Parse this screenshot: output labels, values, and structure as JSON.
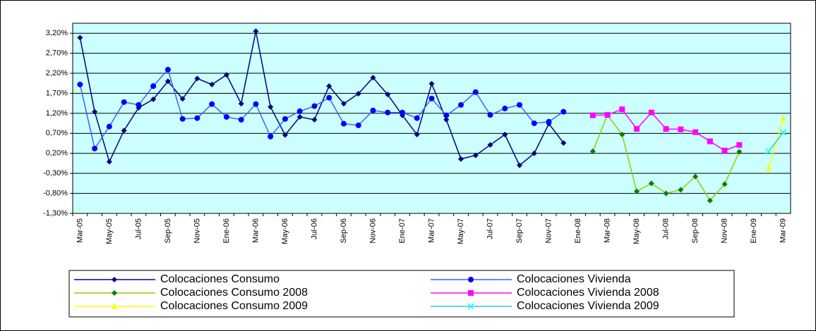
{
  "chart_data": {
    "type": "line",
    "categories": [
      "Mar-05",
      null,
      "May-05",
      null,
      "Jul-05",
      null,
      "Sep-05",
      null,
      "Nov-05",
      null,
      "Ene-06",
      null,
      "Mar-06",
      null,
      "May-06",
      null,
      "Jul-06",
      null,
      "Sep-06",
      null,
      "Nov-06",
      null,
      "Ene-07",
      null,
      "Mar-07",
      null,
      "May-07",
      null,
      "Jul-07",
      null,
      "Sep-07",
      null,
      "Nov-07",
      null,
      "Ene-08",
      null,
      "Mar-08",
      null,
      "May-08",
      null,
      "Jul-08",
      null,
      "Sep-08",
      null,
      "Nov-08",
      null,
      "Ene-09",
      null,
      "Mar-09"
    ],
    "series": [
      {
        "name": "Colocaciones Consumo",
        "color": "#000080",
        "marker_color": "#000080",
        "marker": "diamond",
        "values": [
          3.09,
          1.24,
          -0.01,
          0.77,
          1.34,
          1.55,
          2.0,
          1.56,
          2.07,
          1.92,
          2.16,
          1.44,
          3.25,
          1.36,
          0.66,
          1.11,
          1.04,
          1.88,
          1.44,
          1.69,
          2.09,
          1.67,
          1.15,
          0.67,
          1.94,
          1.04,
          0.06,
          0.15,
          0.41,
          0.67,
          -0.1,
          0.2,
          0.94,
          0.46,
          null,
          null,
          null,
          null,
          null,
          null,
          null,
          null,
          null,
          null,
          null,
          null,
          null,
          null,
          null
        ]
      },
      {
        "name": "Colocaciones Vivienda",
        "color": "#3366ff",
        "marker_color": "#0000ff",
        "marker": "circle",
        "values": [
          1.92,
          0.32,
          0.87,
          1.48,
          1.41,
          1.88,
          2.29,
          1.06,
          1.08,
          1.43,
          1.11,
          1.04,
          1.43,
          0.62,
          1.06,
          1.25,
          1.38,
          1.59,
          0.94,
          0.9,
          1.27,
          1.22,
          1.22,
          1.08,
          1.57,
          1.15,
          1.41,
          1.73,
          1.16,
          1.32,
          1.41,
          0.95,
          0.99,
          1.24,
          null,
          null,
          null,
          null,
          null,
          null,
          null,
          null,
          null,
          null,
          null,
          null,
          null,
          null,
          null
        ]
      },
      {
        "name": "Colocaciones Consumo 2008",
        "color": "#99cc00",
        "marker_color": "#008000",
        "marker": "diamond",
        "values": [
          null,
          null,
          null,
          null,
          null,
          null,
          null,
          null,
          null,
          null,
          null,
          null,
          null,
          null,
          null,
          null,
          null,
          null,
          null,
          null,
          null,
          null,
          null,
          null,
          null,
          null,
          null,
          null,
          null,
          null,
          null,
          null,
          null,
          null,
          null,
          0.25,
          1.16,
          0.67,
          -0.75,
          -0.55,
          -0.8,
          -0.71,
          -0.38,
          -0.98,
          -0.57,
          0.24,
          null,
          null,
          null
        ]
      },
      {
        "name": "Colocaciones Vivienda 2008",
        "color": "#ff00ff",
        "marker_color": "#ff00ff",
        "marker": "square",
        "values": [
          null,
          null,
          null,
          null,
          null,
          null,
          null,
          null,
          null,
          null,
          null,
          null,
          null,
          null,
          null,
          null,
          null,
          null,
          null,
          null,
          null,
          null,
          null,
          null,
          null,
          null,
          null,
          null,
          null,
          null,
          null,
          null,
          null,
          null,
          null,
          1.15,
          1.16,
          1.3,
          0.81,
          1.22,
          0.81,
          0.8,
          0.73,
          0.5,
          0.27,
          0.41,
          null,
          null,
          null
        ]
      },
      {
        "name": "Colocaciones Consumo 2009",
        "color": "#ffff00",
        "marker_color": "#ffff00",
        "marker": "triangle",
        "values": [
          null,
          null,
          null,
          null,
          null,
          null,
          null,
          null,
          null,
          null,
          null,
          null,
          null,
          null,
          null,
          null,
          null,
          null,
          null,
          null,
          null,
          null,
          null,
          null,
          null,
          null,
          null,
          null,
          null,
          null,
          null,
          null,
          null,
          null,
          null,
          null,
          null,
          null,
          null,
          null,
          null,
          null,
          null,
          null,
          null,
          null,
          null,
          -0.17,
          1.08
        ]
      },
      {
        "name": "Colocaciones Vivienda 2009",
        "color": "#33cccc",
        "marker_color": "#00ffff",
        "marker": "x",
        "values": [
          null,
          null,
          null,
          null,
          null,
          null,
          null,
          null,
          null,
          null,
          null,
          null,
          null,
          null,
          null,
          null,
          null,
          null,
          null,
          null,
          null,
          null,
          null,
          null,
          null,
          null,
          null,
          null,
          null,
          null,
          null,
          null,
          null,
          null,
          null,
          null,
          null,
          null,
          null,
          null,
          null,
          null,
          null,
          null,
          null,
          null,
          null,
          0.25,
          0.72
        ]
      }
    ],
    "ylim": [
      -1.3,
      3.45
    ],
    "yticks": [
      {
        "value": -1.3,
        "label": "-1,30%"
      },
      {
        "value": -0.8,
        "label": "-0,80%"
      },
      {
        "value": -0.3,
        "label": "-0,30%"
      },
      {
        "value": 0.2,
        "label": "0,20%"
      },
      {
        "value": 0.7,
        "label": "0,70%"
      },
      {
        "value": 1.2,
        "label": "1,20%"
      },
      {
        "value": 1.7,
        "label": "1,70%"
      },
      {
        "value": 2.2,
        "label": "2,20%"
      },
      {
        "value": 2.7,
        "label": "2,70%"
      },
      {
        "value": 3.2,
        "label": "3,20%"
      }
    ],
    "grid": true,
    "plot_background": "#ccffff",
    "legend": "bottom"
  }
}
